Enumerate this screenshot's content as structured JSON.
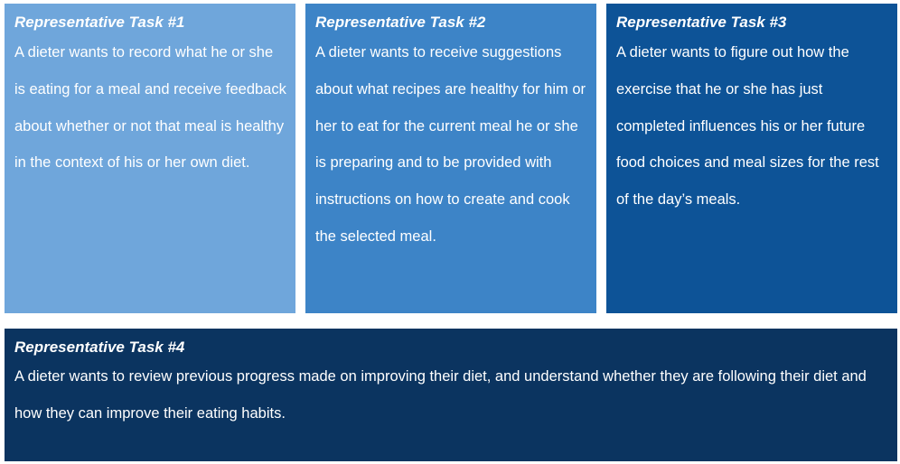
{
  "tasks": [
    {
      "title": "Representative Task #1",
      "body": "A dieter wants to record what he or she is eating for a meal and receive feedback about whether or not that meal is healthy in the context of his or her own diet.",
      "color": "#6fa6db"
    },
    {
      "title": "Representative Task #2",
      "body": "A dieter wants to receive suggestions about what recipes are healthy for him or her to eat for the current meal he or she is preparing and to be provided with instructions on how to create and cook the selected meal.",
      "color": "#3d84c7"
    },
    {
      "title": "Representative Task #3",
      "body": "A dieter wants to figure out how the exercise that he or she has just completed influences his or her future food choices and meal sizes for the rest of the day’s meals.",
      "color": "#0d5397"
    },
    {
      "title": "Representative Task #4",
      "body": "A dieter wants to review previous progress made on improving their diet, and understand whether they are following their diet and how they can improve their eating habits.",
      "color": "#0b3460"
    }
  ]
}
